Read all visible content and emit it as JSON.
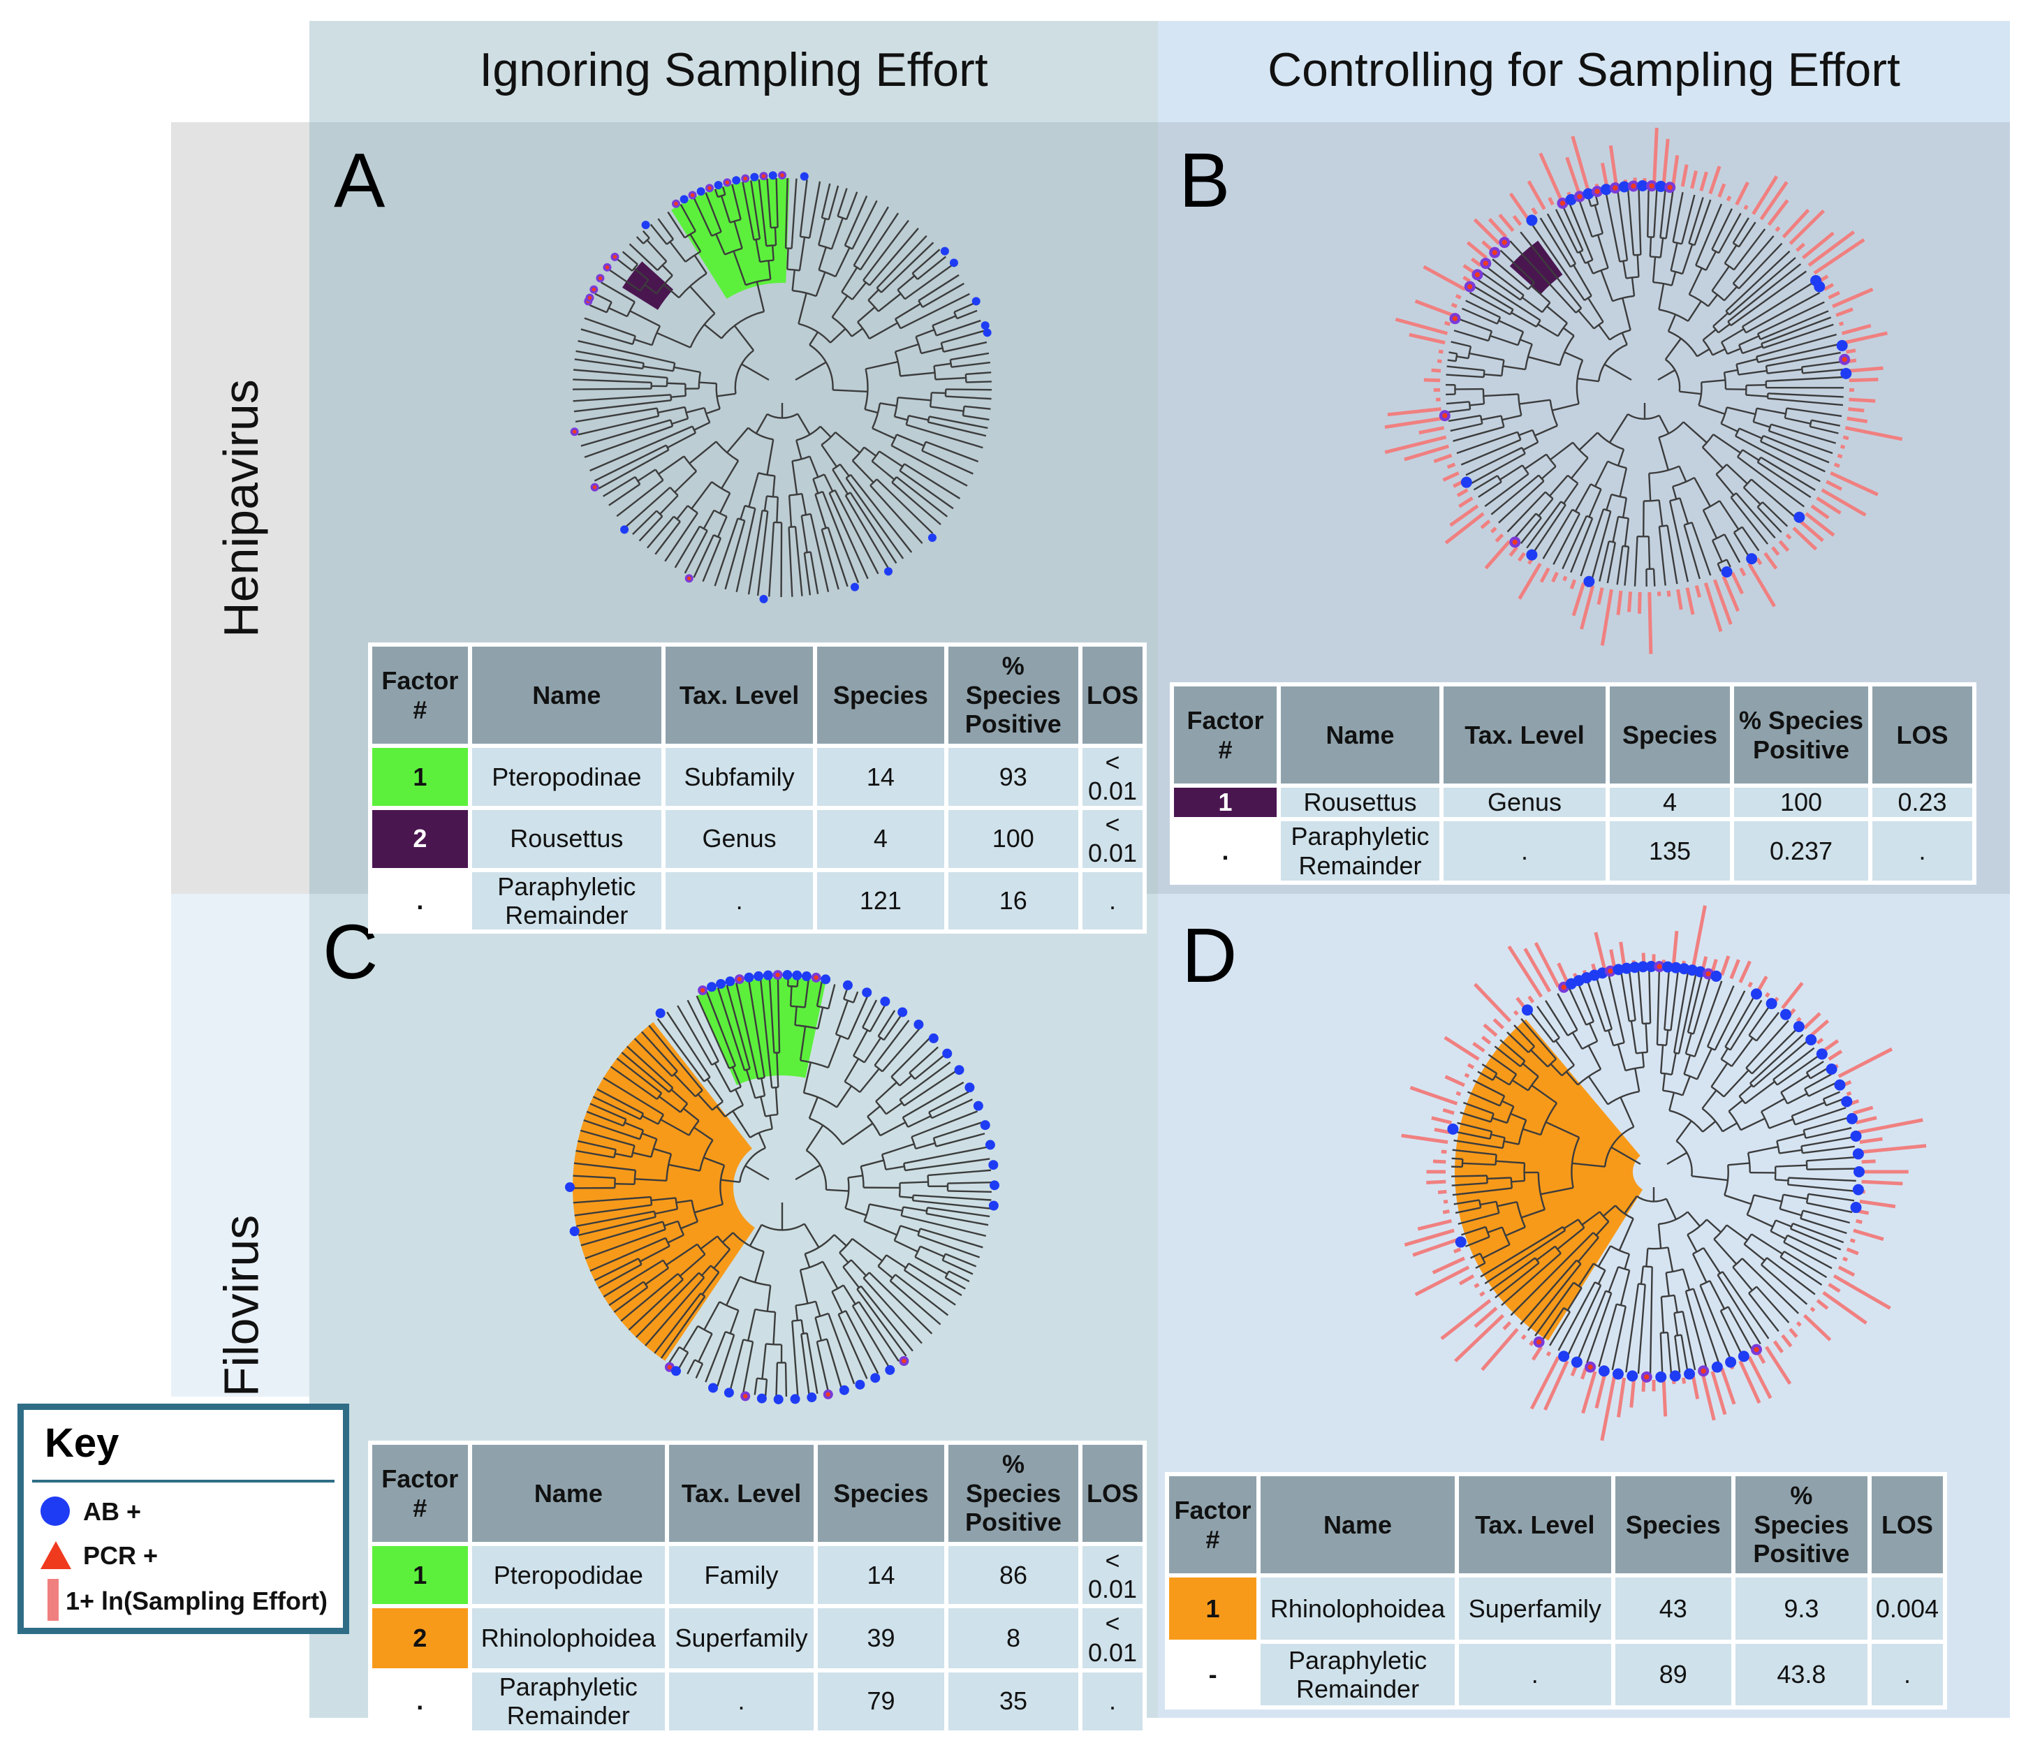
{
  "columns": {
    "left": "Ignoring Sampling Effort",
    "right": "Controlling for Sampling Effort"
  },
  "rows": {
    "top": "Henipavirus",
    "bottom": "Filovirus"
  },
  "colors": {
    "pteropodinae_green": "#5cf03c",
    "rousettus_purple": "#4a1650",
    "rhinolophoidea_orange": "#f79a1a",
    "ab_positive_blue": "#1f3cf5",
    "pcr_positive_red": "#f03a1e",
    "sampling_effort_pink": "#f08080"
  },
  "table_headers": {
    "factor": "Factor #",
    "name": "Name",
    "tax_level": "Tax. Level",
    "species": "Species",
    "pct_positive": "% Species Positive",
    "los": "LOS"
  },
  "panels": [
    {
      "letter": "A",
      "rows": [
        {
          "factor": "1",
          "name": "Pteropodinae",
          "tax_level": "Subfamily",
          "species": "14",
          "pct_positive": "93",
          "los": "< 0.01",
          "color": "green"
        },
        {
          "factor": "2",
          "name": "Rousettus",
          "tax_level": "Genus",
          "species": "4",
          "pct_positive": "100",
          "los": "< 0.01",
          "color": "purple"
        },
        {
          "factor": ".",
          "name": "Paraphyletic Remainder",
          "tax_level": ".",
          "species": "121",
          "pct_positive": "16",
          "los": ".",
          "color": "white"
        }
      ]
    },
    {
      "letter": "B",
      "rows": [
        {
          "factor": "1",
          "name": "Rousettus",
          "tax_level": "Genus",
          "species": "4",
          "pct_positive": "100",
          "los": "0.23",
          "color": "purple"
        },
        {
          "factor": ".",
          "name": "Paraphyletic Remainder",
          "tax_level": ".",
          "species": "135",
          "pct_positive": "0.237",
          "los": ".",
          "color": "white"
        }
      ]
    },
    {
      "letter": "C",
      "rows": [
        {
          "factor": "1",
          "name": "Pteropodidae",
          "tax_level": "Family",
          "species": "14",
          "pct_positive": "86",
          "los": "< 0.01",
          "color": "green"
        },
        {
          "factor": "2",
          "name": "Rhinolophoidea",
          "tax_level": "Superfamily",
          "species": "39",
          "pct_positive": "8",
          "los": "< 0.01",
          "color": "orange"
        },
        {
          "factor": ".",
          "name": "Paraphyletic Remainder",
          "tax_level": ".",
          "species": "79",
          "pct_positive": "35",
          "los": ".",
          "color": "white"
        }
      ]
    },
    {
      "letter": "D",
      "rows": [
        {
          "factor": "1",
          "name": "Rhinolophoidea",
          "tax_level": "Superfamily",
          "species": "43",
          "pct_positive": "9.3",
          "los": "0.004",
          "color": "orange"
        },
        {
          "factor": "-",
          "name": "Paraphyletic Remainder",
          "tax_level": ".",
          "species": "89",
          "pct_positive": "43.8",
          "los": ".",
          "color": "white"
        }
      ]
    }
  ],
  "key": {
    "title": "Key",
    "ab": "AB +",
    "pcr": "PCR +",
    "effort": "1+ ln(Sampling Effort)"
  }
}
